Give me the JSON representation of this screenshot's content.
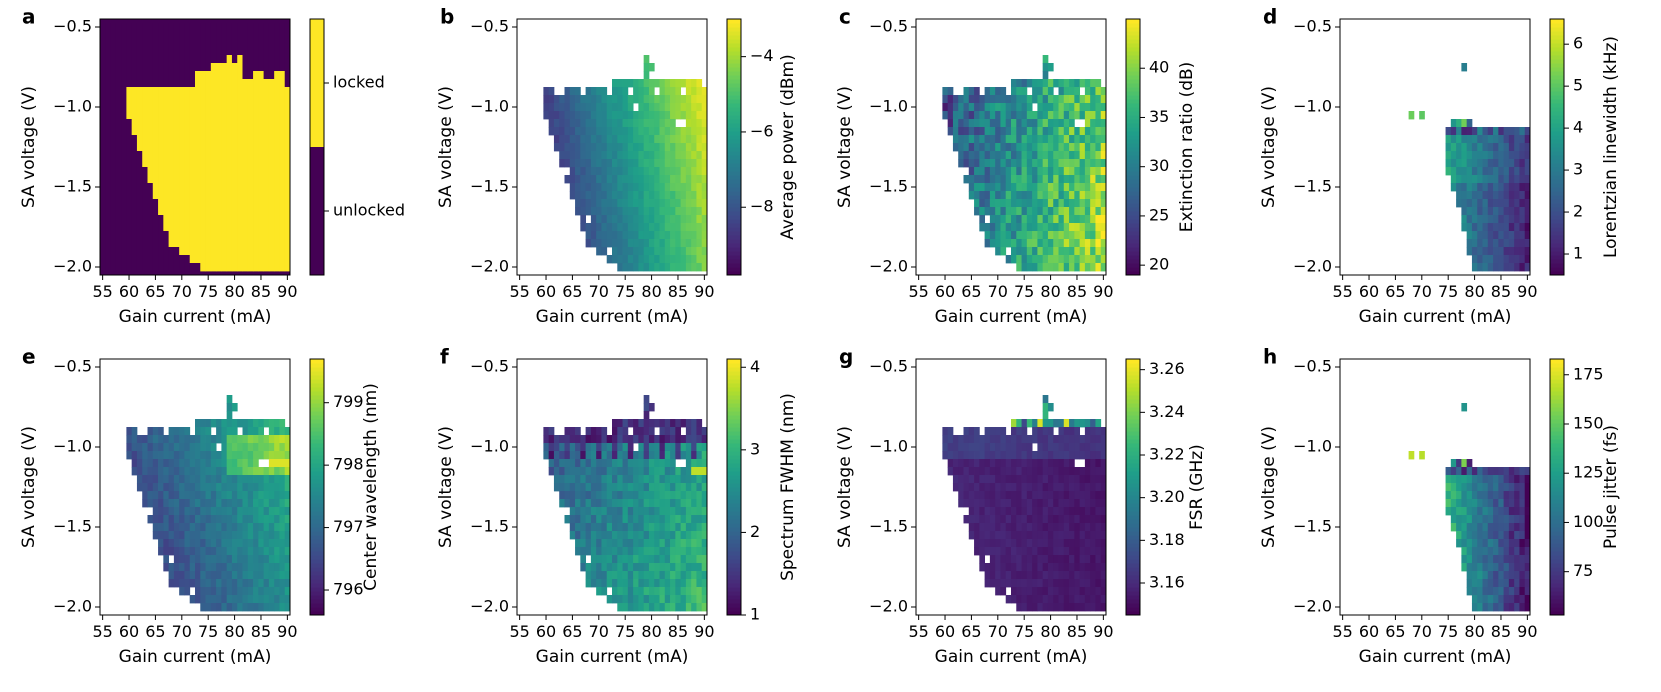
{
  "chart_data": [
    {
      "type": "heatmap",
      "panel": "a",
      "xlabel": "Gain current (mA)",
      "ylabel": "SA voltage (V)",
      "xticks": [
        "55",
        "60",
        "65",
        "70",
        "75",
        "80",
        "85",
        "90"
      ],
      "yticks": [
        "−0.5",
        "−1.0",
        "−1.5",
        "−2.0"
      ],
      "xlim": [
        54.5,
        90.5
      ],
      "ylim": [
        -2.05,
        -0.45
      ],
      "colorbar": {
        "label": "",
        "vmin": 0,
        "vmax": 1,
        "categorical": true,
        "ticks": [
          {
            "v": 0.75,
            "label": "locked"
          },
          {
            "v": 0.25,
            "label": "unlocked"
          }
        ]
      },
      "field": "locked"
    },
    {
      "type": "heatmap",
      "panel": "b",
      "xlabel": "Gain current (mA)",
      "ylabel": "SA voltage (V)",
      "xticks": [
        "55",
        "60",
        "65",
        "70",
        "75",
        "80",
        "85",
        "90"
      ],
      "yticks": [
        "−0.5",
        "−1.0",
        "−1.5",
        "−2.0"
      ],
      "xlim": [
        54.5,
        90.5
      ],
      "ylim": [
        -2.05,
        -0.45
      ],
      "colorbar": {
        "label": "Average power (dBm)",
        "vmin": -9.8,
        "vmax": -3.0,
        "ticks": [
          {
            "v": -4,
            "label": "−4"
          },
          {
            "v": -6,
            "label": "−6"
          },
          {
            "v": -8,
            "label": "−8"
          }
        ]
      },
      "field": "power"
    },
    {
      "type": "heatmap",
      "panel": "c",
      "xlabel": "Gain current (mA)",
      "ylabel": "SA voltage (V)",
      "xticks": [
        "55",
        "60",
        "65",
        "70",
        "75",
        "80",
        "85",
        "90"
      ],
      "yticks": [
        "−0.5",
        "−1.0",
        "−1.5",
        "−2.0"
      ],
      "xlim": [
        54.5,
        90.5
      ],
      "ylim": [
        -2.05,
        -0.45
      ],
      "colorbar": {
        "label": "Extinction ratio (dB)",
        "vmin": 19,
        "vmax": 45,
        "ticks": [
          {
            "v": 40,
            "label": "40"
          },
          {
            "v": 35,
            "label": "35"
          },
          {
            "v": 30,
            "label": "30"
          },
          {
            "v": 25,
            "label": "25"
          },
          {
            "v": 20,
            "label": "20"
          }
        ]
      },
      "field": "extinction"
    },
    {
      "type": "heatmap",
      "panel": "d",
      "xlabel": "Gain current (mA)",
      "ylabel": "SA voltage (V)",
      "xticks": [
        "55",
        "60",
        "65",
        "70",
        "75",
        "80",
        "85",
        "90"
      ],
      "yticks": [
        "−0.5",
        "−1.0",
        "−1.5",
        "−2.0"
      ],
      "xlim": [
        54.5,
        90.5
      ],
      "ylim": [
        -2.05,
        -0.45
      ],
      "colorbar": {
        "label": "Lorentzian linewidth (kHz)",
        "vmin": 0.5,
        "vmax": 6.6,
        "ticks": [
          {
            "v": 6,
            "label": "6"
          },
          {
            "v": 5,
            "label": "5"
          },
          {
            "v": 4,
            "label": "4"
          },
          {
            "v": 3,
            "label": "3"
          },
          {
            "v": 2,
            "label": "2"
          },
          {
            "v": 1,
            "label": "1"
          }
        ]
      },
      "field": "linewidth"
    },
    {
      "type": "heatmap",
      "panel": "e",
      "xlabel": "Gain current (mA)",
      "ylabel": "SA voltage (V)",
      "xticks": [
        "55",
        "60",
        "65",
        "70",
        "75",
        "80",
        "85",
        "90"
      ],
      "yticks": [
        "−0.5",
        "−1.0",
        "−1.5",
        "−2.0"
      ],
      "xlim": [
        54.5,
        90.5
      ],
      "ylim": [
        -2.05,
        -0.45
      ],
      "colorbar": {
        "label": "Center wavelength (nm)",
        "vmin": 795.6,
        "vmax": 799.7,
        "ticks": [
          {
            "v": 799,
            "label": "799"
          },
          {
            "v": 798,
            "label": "798"
          },
          {
            "v": 797,
            "label": "797"
          },
          {
            "v": 796,
            "label": "796"
          }
        ]
      },
      "field": "wavelength"
    },
    {
      "type": "heatmap",
      "panel": "f",
      "xlabel": "Gain current (mA)",
      "ylabel": "SA voltage (V)",
      "xticks": [
        "55",
        "60",
        "65",
        "70",
        "75",
        "80",
        "85",
        "90"
      ],
      "yticks": [
        "−0.5",
        "−1.0",
        "−1.5",
        "−2.0"
      ],
      "xlim": [
        54.5,
        90.5
      ],
      "ylim": [
        -2.05,
        -0.45
      ],
      "colorbar": {
        "label": "Spectrum FWHM (nm)",
        "vmin": 1.0,
        "vmax": 4.1,
        "ticks": [
          {
            "v": 4,
            "label": "4"
          },
          {
            "v": 3,
            "label": "3"
          },
          {
            "v": 2,
            "label": "2"
          },
          {
            "v": 1,
            "label": "1"
          }
        ]
      },
      "field": "fwhm"
    },
    {
      "type": "heatmap",
      "panel": "g",
      "xlabel": "Gain current (mA)",
      "ylabel": "SA voltage (V)",
      "xticks": [
        "55",
        "60",
        "65",
        "70",
        "75",
        "80",
        "85",
        "90"
      ],
      "yticks": [
        "−0.5",
        "−1.0",
        "−1.5",
        "−2.0"
      ],
      "xlim": [
        54.5,
        90.5
      ],
      "ylim": [
        -2.05,
        -0.45
      ],
      "colorbar": {
        "label": "FSR (GHz)",
        "vmin": 3.145,
        "vmax": 3.265,
        "ticks": [
          {
            "v": 3.26,
            "label": "3.26"
          },
          {
            "v": 3.24,
            "label": "3.24"
          },
          {
            "v": 3.22,
            "label": "3.22"
          },
          {
            "v": 3.2,
            "label": "3.20"
          },
          {
            "v": 3.18,
            "label": "3.18"
          },
          {
            "v": 3.16,
            "label": "3.16"
          }
        ]
      },
      "field": "fsr"
    },
    {
      "type": "heatmap",
      "panel": "h",
      "xlabel": "Gain current (mA)",
      "ylabel": "SA voltage (V)",
      "xticks": [
        "55",
        "60",
        "65",
        "70",
        "75",
        "80",
        "85",
        "90"
      ],
      "yticks": [
        "−0.5",
        "−1.0",
        "−1.5",
        "−2.0"
      ],
      "xlim": [
        54.5,
        90.5
      ],
      "ylim": [
        -2.05,
        -0.45
      ],
      "colorbar": {
        "label": "Pulse jitter (fs)",
        "vmin": 53,
        "vmax": 183,
        "ticks": [
          {
            "v": 175,
            "label": "175"
          },
          {
            "v": 150,
            "label": "150"
          },
          {
            "v": 125,
            "label": "125"
          },
          {
            "v": 100,
            "label": "100"
          },
          {
            "v": 75,
            "label": "75"
          }
        ]
      },
      "field": "jitter"
    }
  ],
  "grid": {
    "gain_current_mA": [
      55,
      56,
      57,
      58,
      59,
      60,
      61,
      62,
      63,
      64,
      65,
      66,
      67,
      68,
      69,
      70,
      71,
      72,
      73,
      74,
      75,
      76,
      77,
      78,
      79,
      80,
      81,
      82,
      83,
      84,
      85,
      86,
      87,
      88,
      89,
      90
    ],
    "sa_voltage_V": [
      -0.5,
      -0.55,
      -0.6,
      -0.65,
      -0.7,
      -0.75,
      -0.8,
      -0.85,
      -0.9,
      -0.95,
      -1.0,
      -1.05,
      -1.1,
      -1.15,
      -1.2,
      -1.25,
      -1.3,
      -1.35,
      -1.4,
      -1.45,
      -1.5,
      -1.55,
      -1.6,
      -1.65,
      -1.7,
      -1.75,
      -1.8,
      -1.85,
      -1.9,
      -1.95,
      -2.0
    ],
    "locked_rows": [
      "000000000000000000000000000000000000",
      "000000000000000000000000000000000000",
      "000000000000000000000000000000000000",
      "000000000000000000000000000000000000",
      "000000000000000000000000101000000000",
      "000000000000000000000111111000000000",
      "000000000000000000111111111001100110",
      "000000000000000000111111111111111110",
      "000001111111111111111111111111111111",
      "000001111111111111111111111111111111",
      "000001111111111111111111111111111111",
      "000001111111111111111111111111111111",
      "000000111111111111111111111111111111",
      "000000111111111111111111111111111111",
      "000000011111111111111111111111111111",
      "000000011111111111111111111111111111",
      "000000001111111111111111111111111111",
      "000000001111111111111111111111111111",
      "000000000111111111111111111111111111",
      "000000000111111111111111111111111111",
      "000000000011111111111111111111111111",
      "000000000011111111111111111111111111",
      "000000000001111111111111111111111111",
      "000000000001111111111111111111111111",
      "000000000000111111111111111111111111",
      "000000000000111111111111111111111111",
      "000000000000011111111111111111111111",
      "000000000000011111111111111111111111",
      "000000000000000111111111111111111111",
      "000000000000000001111111111111111111",
      "000000000000000000011111111111111111"
    ]
  }
}
